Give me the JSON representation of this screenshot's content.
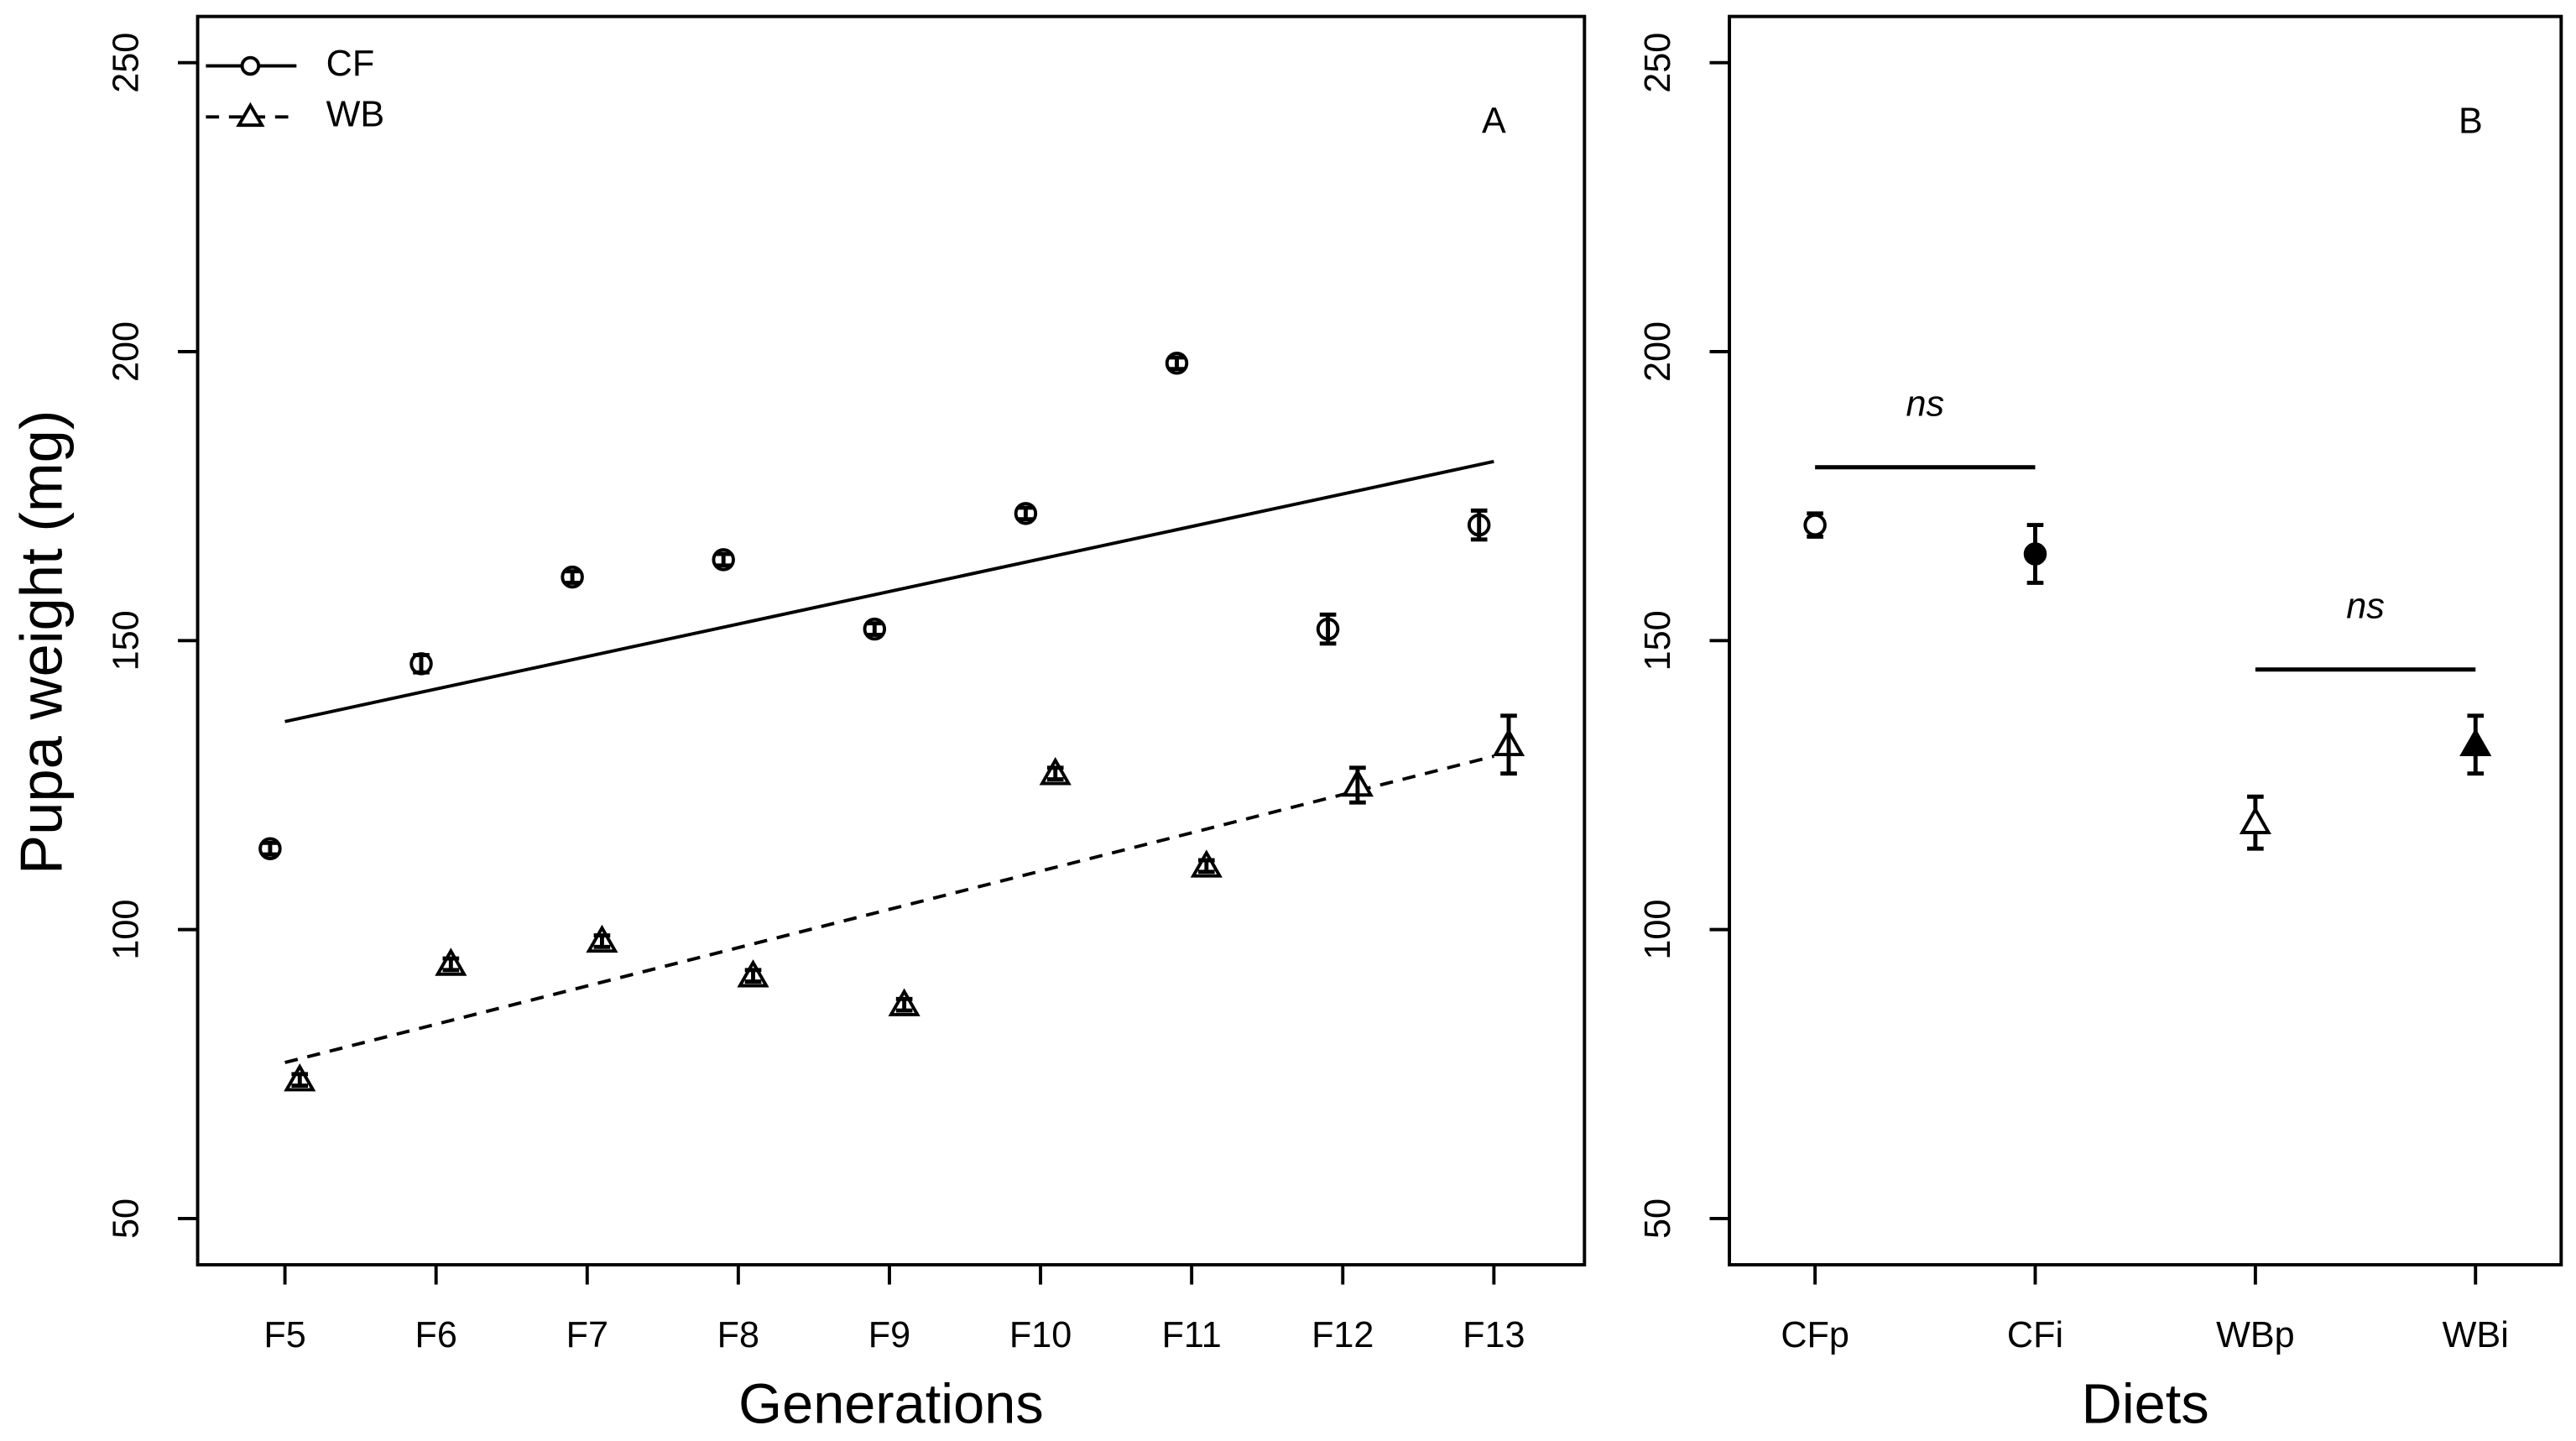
{
  "chart_data": [
    {
      "type": "scatter",
      "panel_label": "A",
      "ylabel": "Pupa weight (mg)",
      "xlabel": "Generations",
      "categories": [
        "F5",
        "F6",
        "F7",
        "F8",
        "F9",
        "F10",
        "F11",
        "F12",
        "F13"
      ],
      "ylim": [
        42,
        258
      ],
      "yticks": [
        50,
        100,
        150,
        200,
        250
      ],
      "legend": "top-left",
      "series": [
        {
          "name": "CF",
          "color": "#000000",
          "marker": "circle",
          "line_style": "solid",
          "values": [
            114,
            146,
            161,
            164,
            152,
            172,
            198,
            152,
            170
          ],
          "errors": [
            1,
            1.5,
            1,
            1,
            1,
            1,
            1,
            2.5,
            2.5
          ],
          "trend": [
            136,
            181
          ]
        },
        {
          "name": "WB",
          "color": "#000000",
          "marker": "triangle",
          "line_style": "dashed",
          "values": [
            74,
            94,
            98,
            92,
            87,
            127,
            111,
            125,
            132
          ],
          "errors": [
            1,
            1,
            1,
            1,
            1,
            1,
            1,
            3,
            5
          ],
          "trend": [
            77,
            130
          ]
        }
      ]
    },
    {
      "type": "dot",
      "panel_label": "B",
      "xlabel": "Diets",
      "categories": [
        "CFp",
        "CFi",
        "WBp",
        "WBi"
      ],
      "ylim": [
        42,
        258
      ],
      "yticks": [
        50,
        100,
        150,
        200,
        250
      ],
      "values": [
        170,
        165,
        118.5,
        132
      ],
      "errors": [
        2,
        5,
        4.5,
        5
      ],
      "markers": [
        "circle",
        "circle",
        "triangle",
        "triangle"
      ],
      "filled": [
        false,
        true,
        false,
        true
      ],
      "color": "#000000",
      "annotations": [
        {
          "text": "ns",
          "value": 180,
          "span": [
            "CFp",
            "CFi"
          ]
        },
        {
          "text": "ns",
          "value": 145,
          "span": [
            "WBp",
            "WBi"
          ]
        }
      ]
    }
  ]
}
